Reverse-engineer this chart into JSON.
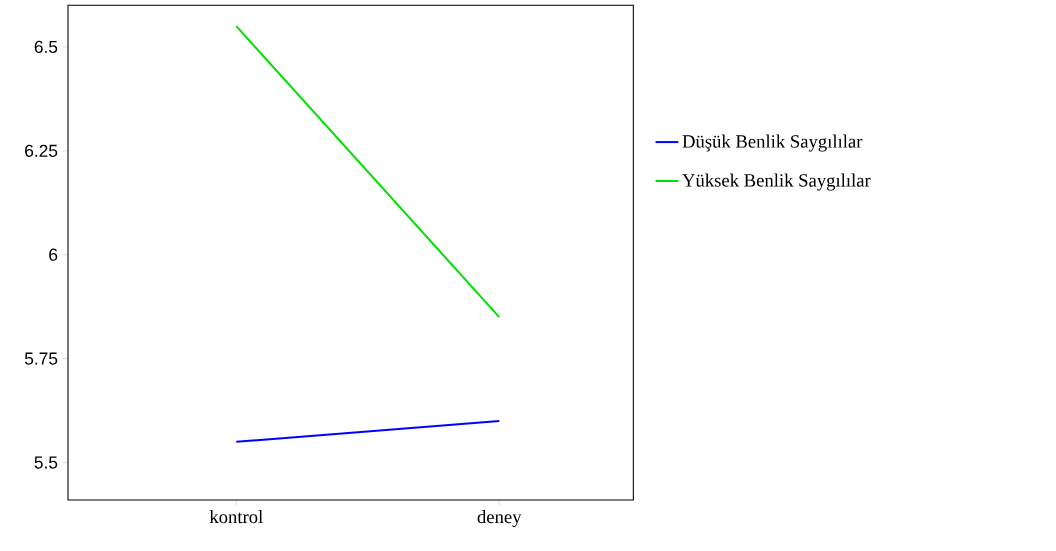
{
  "chart_data": {
    "type": "line",
    "categories": [
      "kontrol",
      "deney"
    ],
    "series": [
      {
        "name": "Düşük Benlik Saygılılar",
        "color": "#0000ff",
        "values": [
          5.55,
          5.6
        ]
      },
      {
        "name": "Yüksek Benlik Saygılılar",
        "color": "#00e000",
        "values": [
          6.55,
          5.85
        ]
      }
    ],
    "ylim": [
      5.41,
      6.6
    ],
    "yticks": [
      5.5,
      5.75,
      6,
      6.25,
      6.5
    ],
    "grid": false,
    "legend": "right",
    "marker": "none",
    "line_style": "solid"
  }
}
